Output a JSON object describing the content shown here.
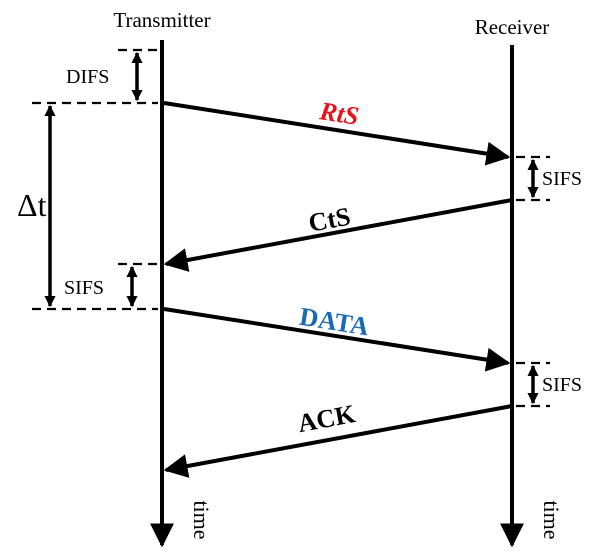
{
  "diagram": {
    "transmitter_label": "Transmitter",
    "receiver_label": "Receiver",
    "time_label_left": "time",
    "time_label_right": "time",
    "delta_label": "Δt",
    "intervals": {
      "difs": "DIFS",
      "sifs_receiver_1": "SIFS",
      "sifs_transmitter": "SIFS",
      "sifs_receiver_2": "SIFS"
    },
    "messages": {
      "rts": {
        "label": "RtS",
        "color": "#e8131b"
      },
      "cts": {
        "label": "CtS",
        "color": "#000000"
      },
      "data": {
        "label": "DATA",
        "color": "#1a6bb5"
      },
      "ack": {
        "label": "ACK",
        "color": "#000000"
      }
    }
  }
}
